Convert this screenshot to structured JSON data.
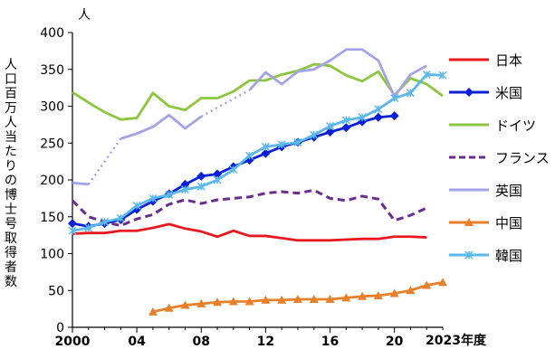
{
  "chart_data": {
    "type": "line",
    "ylabel": "人口百万人当たりの博士号取得者数",
    "y_unit": "人",
    "x_suffix": "2023年度",
    "ylim": [
      0,
      400
    ],
    "yticks": [
      0,
      50,
      100,
      150,
      200,
      250,
      300,
      350,
      400
    ],
    "xlim": [
      2000,
      2023
    ],
    "xticks": [
      {
        "value": 2000,
        "label": "2000"
      },
      {
        "value": 2004,
        "label": "04"
      },
      {
        "value": 2008,
        "label": "08"
      },
      {
        "value": 2012,
        "label": "12"
      },
      {
        "value": 2016,
        "label": "16"
      },
      {
        "value": 2020,
        "label": "20"
      }
    ],
    "grid": false,
    "legend_position": "right",
    "series": [
      {
        "name": "日本",
        "color": "#e8191e",
        "style": "solid",
        "marker": "none",
        "x": [
          2000,
          2001,
          2002,
          2003,
          2004,
          2005,
          2006,
          2007,
          2008,
          2009,
          2010,
          2011,
          2012,
          2013,
          2014,
          2015,
          2016,
          2017,
          2018,
          2019,
          2020,
          2021,
          2022
        ],
        "y": [
          127,
          128,
          128,
          131,
          131,
          135,
          140,
          134,
          130,
          123,
          131,
          124,
          124,
          121,
          118,
          118,
          118,
          119,
          120,
          120,
          123,
          123,
          122
        ]
      },
      {
        "name": "米国",
        "color": "#0a1fd6",
        "style": "solid",
        "marker": "diamond",
        "x": [
          2000,
          2001,
          2002,
          2003,
          2004,
          2005,
          2006,
          2007,
          2008,
          2009,
          2010,
          2011,
          2012,
          2013,
          2014,
          2015,
          2016,
          2017,
          2018,
          2019,
          2020
        ],
        "y": [
          141,
          137,
          141,
          146,
          160,
          171,
          181,
          194,
          205,
          208,
          218,
          227,
          236,
          245,
          251,
          258,
          265,
          271,
          279,
          285,
          287
        ]
      },
      {
        "name": "ドイツ",
        "color": "#8cc63f",
        "style": "solid",
        "marker": "none",
        "x": [
          2000,
          2001,
          2002,
          2003,
          2004,
          2005,
          2006,
          2007,
          2008,
          2009,
          2010,
          2011,
          2012,
          2013,
          2014,
          2015,
          2016,
          2017,
          2018,
          2019,
          2020,
          2021,
          2022,
          2023
        ],
        "y": [
          319,
          305,
          292,
          282,
          284,
          318,
          300,
          295,
          311,
          311,
          320,
          335,
          335,
          343,
          348,
          357,
          355,
          342,
          334,
          347,
          315,
          338,
          330,
          314
        ]
      },
      {
        "name": "フランス",
        "color": "#6b2c91",
        "style": "dashed",
        "marker": "none",
        "x": [
          2000,
          2001,
          2002,
          2003,
          2004,
          2005,
          2006,
          2007,
          2008,
          2009,
          2010,
          2011,
          2012,
          2013,
          2014,
          2015,
          2016,
          2017,
          2018,
          2019,
          2020,
          2021,
          2022
        ],
        "y": [
          172,
          150,
          143,
          138,
          147,
          153,
          167,
          173,
          168,
          173,
          175,
          177,
          182,
          184,
          182,
          186,
          175,
          172,
          178,
          174,
          145,
          152,
          162
        ]
      },
      {
        "name": "英国",
        "color": "#a3a3e8",
        "style": "solid",
        "marker": "none",
        "gap_after_index": 1,
        "x": [
          2000,
          2001,
          2003,
          2004,
          2005,
          2006,
          2007,
          2008,
          2011,
          2012,
          2013,
          2014,
          2015,
          2016,
          2017,
          2018,
          2019,
          2020,
          2021,
          2022
        ],
        "y": [
          196,
          194,
          256,
          263,
          272,
          288,
          270,
          286,
          322,
          346,
          330,
          347,
          350,
          362,
          377,
          377,
          362,
          313,
          343,
          355
        ]
      },
      {
        "name": "中国",
        "color": "#e87f2a",
        "style": "solid",
        "marker": "triangle",
        "x": [
          2005,
          2006,
          2007,
          2008,
          2009,
          2010,
          2011,
          2012,
          2013,
          2014,
          2015,
          2016,
          2017,
          2018,
          2019,
          2020,
          2021,
          2022,
          2023
        ],
        "y": [
          21,
          26,
          30,
          32,
          34,
          35,
          35,
          37,
          37,
          38,
          38,
          38,
          40,
          42,
          43,
          46,
          50,
          57,
          61
        ]
      },
      {
        "name": "韓国",
        "color": "#5ab8ed",
        "style": "solid",
        "marker": "x",
        "x": [
          2000,
          2001,
          2002,
          2003,
          2004,
          2005,
          2006,
          2007,
          2008,
          2009,
          2010,
          2011,
          2012,
          2013,
          2014,
          2015,
          2016,
          2017,
          2018,
          2019,
          2020,
          2021,
          2022,
          2023
        ],
        "y": [
          131,
          135,
          143,
          148,
          165,
          175,
          180,
          187,
          191,
          200,
          214,
          233,
          245,
          248,
          251,
          261,
          273,
          281,
          285,
          296,
          311,
          318,
          343,
          342
        ]
      }
    ]
  }
}
